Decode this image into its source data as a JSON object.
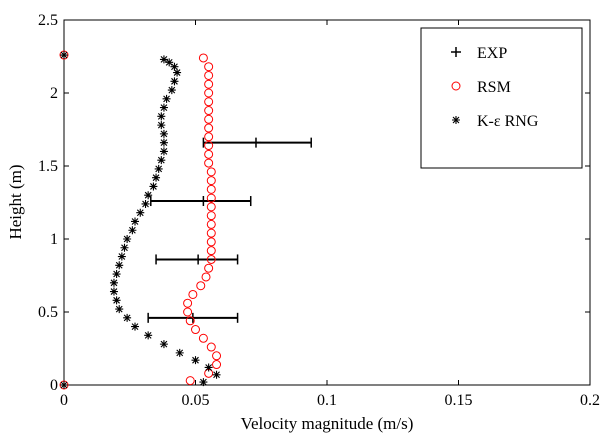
{
  "chart_data": {
    "type": "scatter",
    "xlabel": "Velocity magnitude (m/s)",
    "ylabel": "Height (m)",
    "xlim": [
      0,
      0.2
    ],
    "ylim": [
      0,
      2.5
    ],
    "xticks": [
      "0",
      "0.05",
      "0.1",
      "0.15",
      "0.2"
    ],
    "yticks": [
      "0",
      "0.5",
      "1",
      "1.5",
      "2",
      "2.5"
    ],
    "grid": false,
    "legend_position": "top-right",
    "series": [
      {
        "name": "EXP",
        "marker": "plus",
        "color": "#000000",
        "points": [
          {
            "x": 0.073,
            "y": 1.66,
            "xerr_low": 0.053,
            "xerr_high": 0.094
          },
          {
            "x": 0.053,
            "y": 1.26,
            "xerr_low": 0.033,
            "xerr_high": 0.071
          },
          {
            "x": 0.051,
            "y": 0.86,
            "xerr_low": 0.035,
            "xerr_high": 0.066
          },
          {
            "x": 0.049,
            "y": 0.46,
            "xerr_low": 0.032,
            "xerr_high": 0.066
          }
        ]
      },
      {
        "name": "RSM",
        "marker": "circle",
        "color": "#ff0000",
        "points": [
          {
            "x": 0.0,
            "y": 0.0
          },
          {
            "x": 0.0,
            "y": 2.26
          },
          {
            "x": 0.048,
            "y": 0.03
          },
          {
            "x": 0.055,
            "y": 0.08
          },
          {
            "x": 0.058,
            "y": 0.14
          },
          {
            "x": 0.058,
            "y": 0.2
          },
          {
            "x": 0.056,
            "y": 0.26
          },
          {
            "x": 0.053,
            "y": 0.32
          },
          {
            "x": 0.05,
            "y": 0.38
          },
          {
            "x": 0.048,
            "y": 0.44
          },
          {
            "x": 0.047,
            "y": 0.5
          },
          {
            "x": 0.047,
            "y": 0.56
          },
          {
            "x": 0.049,
            "y": 0.62
          },
          {
            "x": 0.052,
            "y": 0.68
          },
          {
            "x": 0.054,
            "y": 0.74
          },
          {
            "x": 0.055,
            "y": 0.8
          },
          {
            "x": 0.056,
            "y": 0.86
          },
          {
            "x": 0.056,
            "y": 0.92
          },
          {
            "x": 0.056,
            "y": 0.98
          },
          {
            "x": 0.056,
            "y": 1.04
          },
          {
            "x": 0.056,
            "y": 1.1
          },
          {
            "x": 0.056,
            "y": 1.16
          },
          {
            "x": 0.056,
            "y": 1.22
          },
          {
            "x": 0.056,
            "y": 1.28
          },
          {
            "x": 0.056,
            "y": 1.34
          },
          {
            "x": 0.056,
            "y": 1.4
          },
          {
            "x": 0.056,
            "y": 1.46
          },
          {
            "x": 0.055,
            "y": 1.52
          },
          {
            "x": 0.055,
            "y": 1.58
          },
          {
            "x": 0.055,
            "y": 1.64
          },
          {
            "x": 0.055,
            "y": 1.7
          },
          {
            "x": 0.055,
            "y": 1.76
          },
          {
            "x": 0.055,
            "y": 1.82
          },
          {
            "x": 0.055,
            "y": 1.88
          },
          {
            "x": 0.055,
            "y": 1.94
          },
          {
            "x": 0.055,
            "y": 2.0
          },
          {
            "x": 0.055,
            "y": 2.06
          },
          {
            "x": 0.055,
            "y": 2.12
          },
          {
            "x": 0.055,
            "y": 2.18
          },
          {
            "x": 0.053,
            "y": 2.24
          }
        ]
      },
      {
        "name": "K-ε RNG",
        "marker": "star",
        "color": "#000000",
        "points": [
          {
            "x": 0.0,
            "y": 0.0
          },
          {
            "x": 0.0,
            "y": 2.26
          },
          {
            "x": 0.053,
            "y": 0.02
          },
          {
            "x": 0.058,
            "y": 0.07
          },
          {
            "x": 0.055,
            "y": 0.12
          },
          {
            "x": 0.05,
            "y": 0.17
          },
          {
            "x": 0.044,
            "y": 0.22
          },
          {
            "x": 0.038,
            "y": 0.28
          },
          {
            "x": 0.032,
            "y": 0.34
          },
          {
            "x": 0.027,
            "y": 0.4
          },
          {
            "x": 0.024,
            "y": 0.46
          },
          {
            "x": 0.021,
            "y": 0.52
          },
          {
            "x": 0.02,
            "y": 0.58
          },
          {
            "x": 0.019,
            "y": 0.64
          },
          {
            "x": 0.019,
            "y": 0.7
          },
          {
            "x": 0.02,
            "y": 0.76
          },
          {
            "x": 0.021,
            "y": 0.82
          },
          {
            "x": 0.022,
            "y": 0.88
          },
          {
            "x": 0.023,
            "y": 0.94
          },
          {
            "x": 0.024,
            "y": 1.0
          },
          {
            "x": 0.026,
            "y": 1.06
          },
          {
            "x": 0.027,
            "y": 1.12
          },
          {
            "x": 0.029,
            "y": 1.18
          },
          {
            "x": 0.031,
            "y": 1.24
          },
          {
            "x": 0.032,
            "y": 1.3
          },
          {
            "x": 0.034,
            "y": 1.36
          },
          {
            "x": 0.035,
            "y": 1.42
          },
          {
            "x": 0.036,
            "y": 1.48
          },
          {
            "x": 0.037,
            "y": 1.54
          },
          {
            "x": 0.038,
            "y": 1.6
          },
          {
            "x": 0.038,
            "y": 1.66
          },
          {
            "x": 0.038,
            "y": 1.72
          },
          {
            "x": 0.037,
            "y": 1.78
          },
          {
            "x": 0.037,
            "y": 1.84
          },
          {
            "x": 0.038,
            "y": 1.9
          },
          {
            "x": 0.039,
            "y": 1.96
          },
          {
            "x": 0.041,
            "y": 2.02
          },
          {
            "x": 0.042,
            "y": 2.08
          },
          {
            "x": 0.043,
            "y": 2.14
          },
          {
            "x": 0.042,
            "y": 2.18
          },
          {
            "x": 0.04,
            "y": 2.21
          },
          {
            "x": 0.038,
            "y": 2.23
          }
        ]
      }
    ]
  }
}
